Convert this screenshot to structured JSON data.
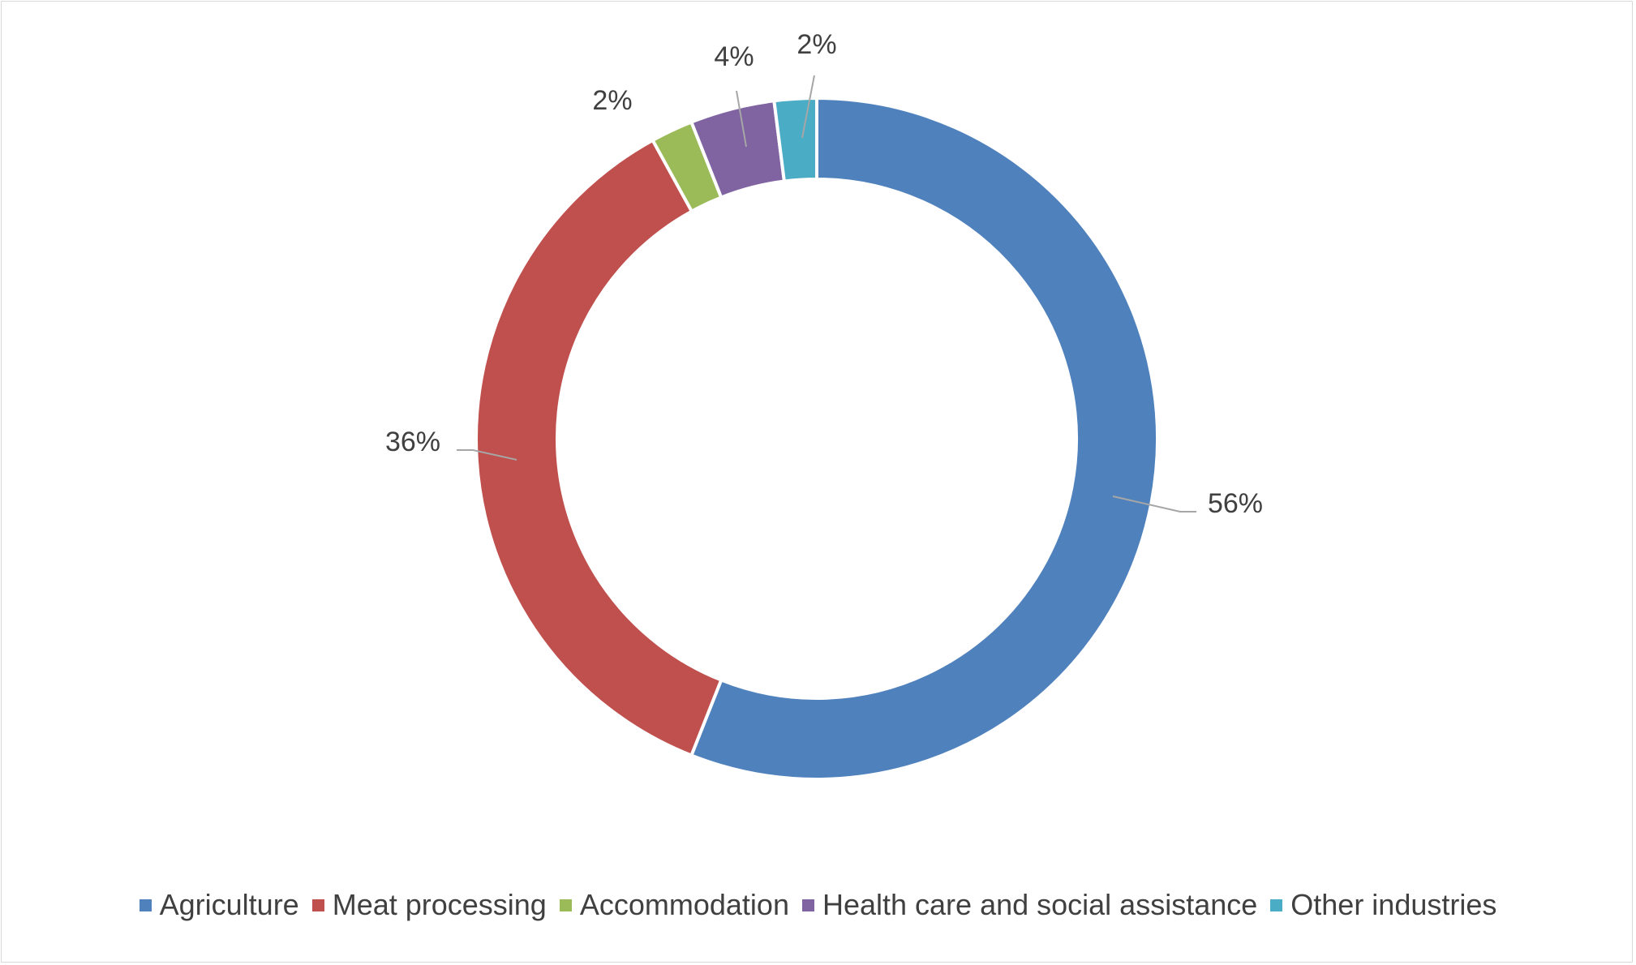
{
  "chart_data": {
    "type": "pie",
    "variant": "doughnut",
    "title": "",
    "categories": [
      "Agriculture",
      "Meat processing",
      "Accommodation",
      "Health care and social assistance",
      "Other industries"
    ],
    "values": [
      56,
      36,
      2,
      4,
      2
    ],
    "value_labels": [
      "56%",
      "36%",
      "2%",
      "4%",
      "2%"
    ],
    "unit": "%",
    "legend_position": "bottom",
    "colors": [
      "#4f81bd",
      "#c0504d",
      "#9bbb59",
      "#8064a2",
      "#4bacc6"
    ]
  }
}
